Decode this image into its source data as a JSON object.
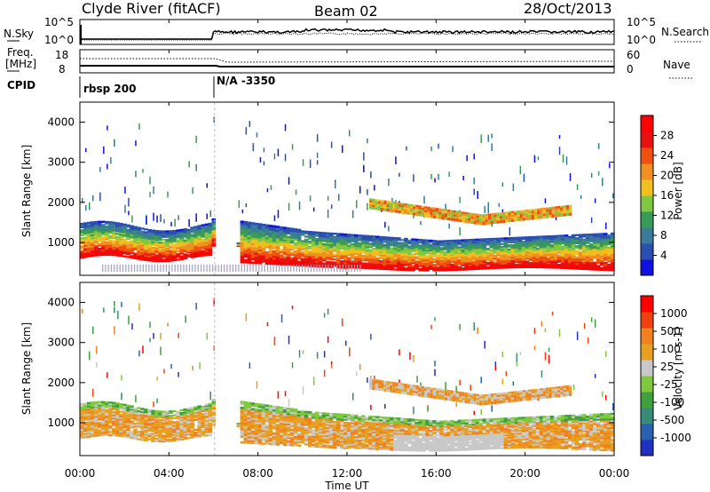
{
  "header": {
    "station": "Clyde River (fitACF)",
    "beam": "Beam 02",
    "date": "28/Oct/2013"
  },
  "panel_labels": {
    "nsky": "N.Sky",
    "nsearch": "N.Search",
    "freq_line1": "Freq.",
    "freq_line2": "[MHz]",
    "nave": "Nave",
    "cpid": "CPID"
  },
  "colors": {
    "power_scale": [
      "#1010e0",
      "#2a4fb0",
      "#3a7a9a",
      "#3a9a5a",
      "#80c840",
      "#f0c020",
      "#f09020",
      "#f05010",
      "#e81010",
      "#ff0000"
    ],
    "velocity_scale": [
      "#2030c0",
      "#2a60b0",
      "#3a8a7a",
      "#40a040",
      "#80c840",
      "#c8c8c8",
      "#e8a020",
      "#f08020",
      "#f04010",
      "#ff0000"
    ]
  },
  "chart_data": [
    {
      "type": "line",
      "name": "noise-search",
      "x_range_hours": [
        0,
        24
      ],
      "left_ticks": [
        "10^5",
        "10^0"
      ],
      "right_ticks": [
        "10^5",
        "10^0"
      ]
    },
    {
      "type": "line",
      "name": "freq-nave",
      "left_ticks": [
        "18",
        "8"
      ],
      "right_ticks": [
        "60",
        "0"
      ]
    },
    {
      "type": "table",
      "name": "cpid",
      "segments": [
        {
          "start_hour": 0,
          "label": "rbsp 200"
        },
        {
          "start_hour": 6,
          "label": "N/A -3350"
        }
      ]
    },
    {
      "type": "heatmap",
      "name": "power",
      "ylabel": "Slant Range [km]",
      "ylim": [
        180,
        4500
      ],
      "yticks": [
        "1000",
        "2000",
        "3000",
        "4000"
      ],
      "xlim_hours": [
        0,
        24
      ],
      "colorbar_label": "Power [dB]",
      "colorbar_ticks": [
        "4",
        "8",
        "12",
        "16",
        "20",
        "24",
        "28"
      ]
    },
    {
      "type": "heatmap",
      "name": "velocity",
      "ylabel": "Slant Range [km]",
      "ylim": [
        180,
        4500
      ],
      "yticks": [
        "1000",
        "2000",
        "3000",
        "4000"
      ],
      "xlim_hours": [
        0,
        24
      ],
      "colorbar_label": "Velocity [m s-1]",
      "colorbar_ticks": [
        "1000",
        "500",
        "100",
        "25",
        "-25",
        "-100",
        "-500",
        "-1000"
      ]
    },
    {
      "type": "axis",
      "name": "time-axis",
      "xlabel": "Time UT",
      "xticks": [
        "00:00",
        "04:00",
        "08:00",
        "12:00",
        "16:00",
        "20:00",
        "00:00"
      ]
    }
  ]
}
